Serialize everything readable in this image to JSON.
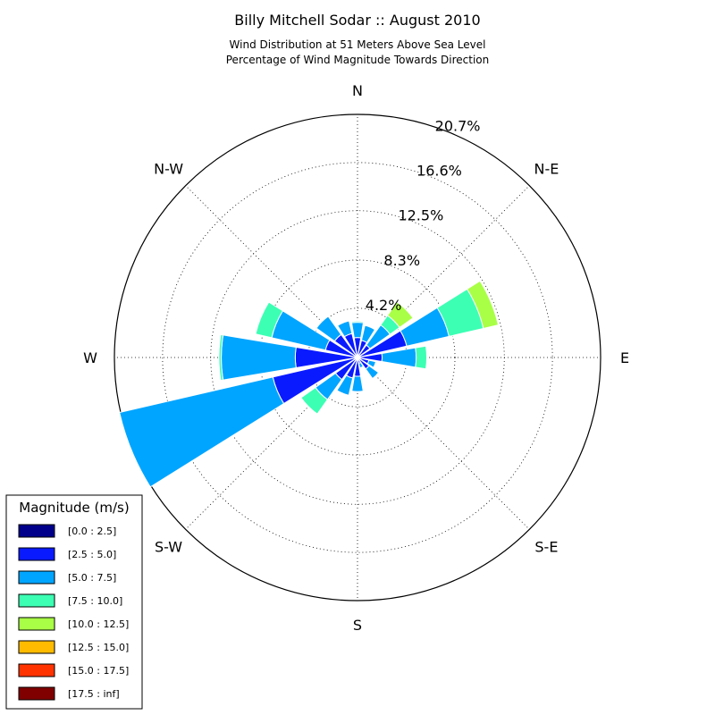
{
  "chart_data": {
    "type": "windrose",
    "title": "Billy Mitchell Sodar :: August 2010",
    "subtitle_lines": [
      "Wind Distribution at 51 Meters Above Sea Level",
      "Percentage of Wind Magnitude Towards Direction"
    ],
    "direction_labels": [
      "N",
      "N-E",
      "E",
      "S-E",
      "S",
      "S-W",
      "W",
      "N-W"
    ],
    "radial_ticks": [
      4.2,
      8.3,
      12.5,
      16.6,
      20.7
    ],
    "radial_tick_labels": [
      "4.2%",
      "8.3%",
      "12.5%",
      "16.6%",
      "20.7%"
    ],
    "radial_max": 20.7,
    "sector_count": 16,
    "sector_angles_deg": [
      0,
      22.5,
      45,
      67.5,
      90,
      112.5,
      135,
      157.5,
      180,
      202.5,
      225,
      247.5,
      270,
      292.5,
      315,
      337.5
    ],
    "bins": [
      {
        "label": "[0.0 : 2.5]",
        "color": "#00008b"
      },
      {
        "label": "[2.5 : 5.0]",
        "color": "#0a1aff"
      },
      {
        "label": "[5.0 : 7.5]",
        "color": "#00a5ff"
      },
      {
        "label": "[7.5 : 10.0]",
        "color": "#3cffb4"
      },
      {
        "label": "[10.0 : 12.5]",
        "color": "#a9ff46"
      },
      {
        "label": "[12.5 : 15.0]",
        "color": "#ffbb00"
      },
      {
        "label": "[15.0 : 17.5]",
        "color": "#ff3300"
      },
      {
        "label": "[17.5 : inf]",
        "color": "#800000"
      }
    ],
    "cumulative_values": [
      [
        0.05,
        1.7,
        3.0,
        3.1,
        3.1,
        3.1,
        3.1,
        3.1
      ],
      [
        0.05,
        1.5,
        2.8,
        2.8,
        2.8,
        2.8,
        2.8,
        2.8
      ],
      [
        0.05,
        1.3,
        3.4,
        4.4,
        5.8,
        5.8,
        5.8,
        5.8
      ],
      [
        0.05,
        4.3,
        8.0,
        11.0,
        12.3,
        12.3,
        12.3,
        12.3
      ],
      [
        0.05,
        2.1,
        5.0,
        5.9,
        5.9,
        5.9,
        5.9,
        5.9
      ],
      [
        0.05,
        1.0,
        1.6,
        1.6,
        1.6,
        1.6,
        1.6,
        1.6
      ],
      [
        0.05,
        1.2,
        2.2,
        2.2,
        2.2,
        2.2,
        2.2,
        2.2
      ],
      [
        0.05,
        0.5,
        0.9,
        0.9,
        0.9,
        0.9,
        0.9,
        0.9
      ],
      [
        0.05,
        1.6,
        2.9,
        2.9,
        2.9,
        2.9,
        2.9,
        2.9
      ],
      [
        0.05,
        1.8,
        3.3,
        3.3,
        3.3,
        3.3,
        3.3,
        3.3
      ],
      [
        0.05,
        2.3,
        4.4,
        5.9,
        5.9,
        5.9,
        5.9,
        5.9
      ],
      [
        0.05,
        7.4,
        20.8,
        20.8,
        20.8,
        20.8,
        20.8,
        20.8
      ],
      [
        0.05,
        5.3,
        11.6,
        11.8,
        11.8,
        11.8,
        11.8,
        11.8
      ],
      [
        0.05,
        2.8,
        7.5,
        8.9,
        8.9,
        8.9,
        8.9,
        8.9
      ],
      [
        0.05,
        2.4,
        4.3,
        4.3,
        4.3,
        4.3,
        4.3,
        4.3
      ],
      [
        0.05,
        2.1,
        3.2,
        3.2,
        3.2,
        3.2,
        3.2,
        3.2
      ]
    ],
    "legend_title": "Magnitude (m/s)",
    "legend_position": "bottom-left"
  }
}
